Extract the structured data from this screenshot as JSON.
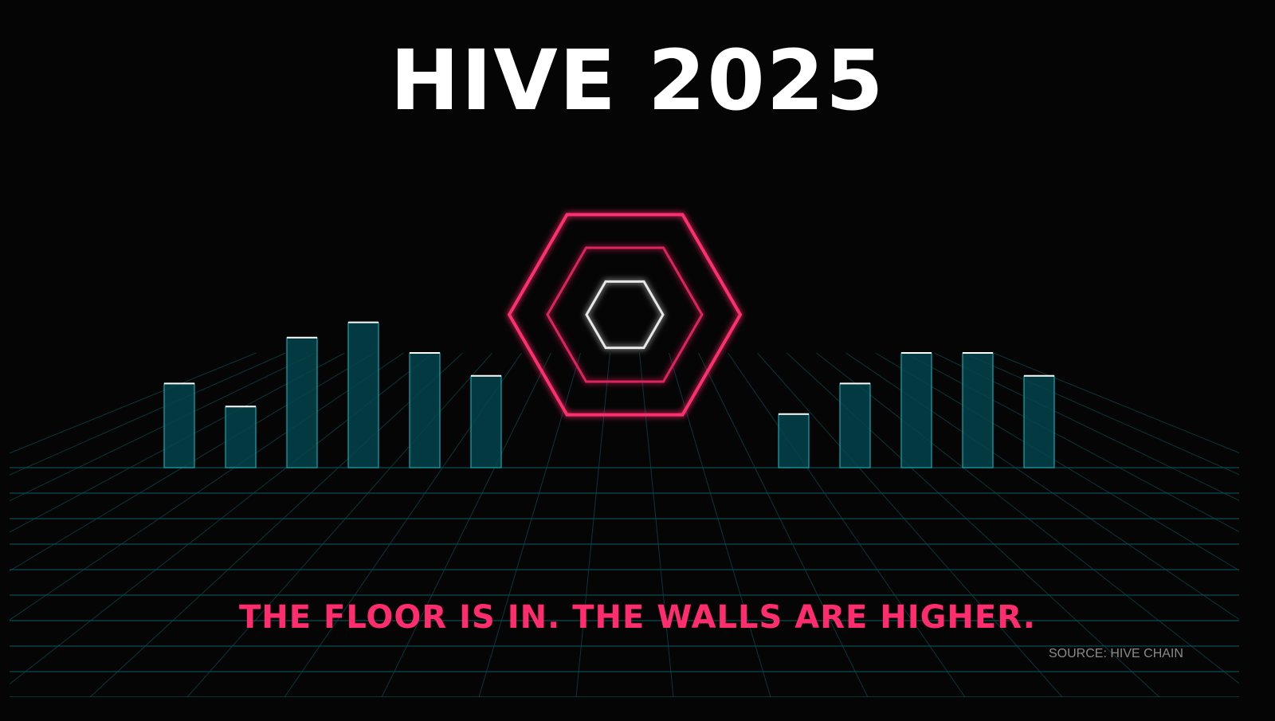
{
  "title": "HIVE 2025",
  "tagline": "THE FLOOR IS IN. THE WALLS ARE HIGHER.",
  "source": "SOURCE: HIVE CHAIN",
  "colors": {
    "background": "#050505",
    "bar_fill": "#04444e",
    "bar_edge": "#1aa3ad",
    "grid": "#0e4a50",
    "accent": "#ff2d6e",
    "hex_inner": "#e8e8e8"
  },
  "bars": {
    "left": [
      5.5,
      4,
      8.5,
      9.5,
      7.5,
      6
    ],
    "right": [
      3.5,
      5.5,
      7.5,
      7.5,
      6
    ]
  },
  "icon": "hexagon-rings"
}
